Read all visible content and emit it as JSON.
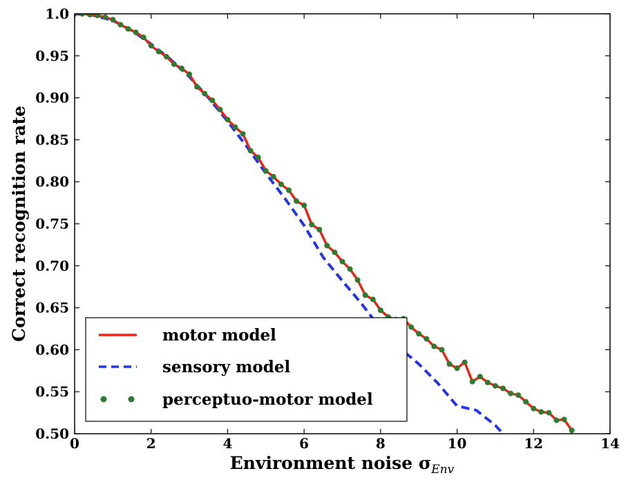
{
  "chart_data": {
    "type": "line",
    "title": "",
    "xlabel": "Environment noise σ",
    "xlabel_subscript": "Env",
    "ylabel": "Correct recognition rate",
    "xlim": [
      0,
      14
    ],
    "ylim": [
      0.5,
      1.0
    ],
    "xticks": [
      0,
      2,
      4,
      6,
      8,
      10,
      12,
      14
    ],
    "yticks": [
      0.5,
      0.55,
      0.6,
      0.65,
      0.7,
      0.75,
      0.8,
      0.85,
      0.9,
      0.95,
      1.0
    ],
    "xtick_labels": [
      "0",
      "2",
      "4",
      "6",
      "8",
      "10",
      "12",
      "14"
    ],
    "ytick_labels": [
      "0.50",
      "0.55",
      "0.60",
      "0.65",
      "0.70",
      "0.75",
      "0.80",
      "0.85",
      "0.90",
      "0.95",
      "1.0"
    ],
    "grid": false,
    "legend_position": "lower-left",
    "series": [
      {
        "name": "motor model",
        "style": "solid",
        "color": "#ee2211",
        "x": [
          0,
          0.2,
          0.4,
          0.6,
          0.8,
          1.0,
          1.2,
          1.4,
          1.6,
          1.8,
          2.0,
          2.2,
          2.4,
          2.6,
          2.8,
          3.0,
          3.2,
          3.4,
          3.6,
          3.8,
          4.0,
          4.2,
          4.4,
          4.6,
          4.8,
          5.0,
          5.2,
          5.4,
          5.6,
          5.8,
          6.0,
          6.2,
          6.4,
          6.6,
          6.8,
          7.0,
          7.2,
          7.4,
          7.6,
          7.8,
          8.0,
          8.2,
          8.4,
          8.6,
          8.8,
          9.0,
          9.2,
          9.4,
          9.6,
          9.8,
          10.0,
          10.2,
          10.4,
          10.6,
          10.8,
          11.0,
          11.2,
          11.4,
          11.6,
          11.8,
          12.0,
          12.2,
          12.4,
          12.6,
          12.8,
          13.0
        ],
        "y": [
          1.0,
          1.0,
          0.999,
          0.998,
          0.996,
          0.993,
          0.987,
          0.982,
          0.978,
          0.972,
          0.962,
          0.955,
          0.949,
          0.94,
          0.935,
          0.928,
          0.913,
          0.905,
          0.897,
          0.886,
          0.874,
          0.865,
          0.857,
          0.837,
          0.829,
          0.813,
          0.806,
          0.797,
          0.79,
          0.777,
          0.772,
          0.749,
          0.743,
          0.724,
          0.716,
          0.705,
          0.696,
          0.683,
          0.665,
          0.66,
          0.647,
          0.639,
          0.636,
          0.637,
          0.627,
          0.619,
          0.613,
          0.604,
          0.6,
          0.583,
          0.578,
          0.585,
          0.562,
          0.568,
          0.561,
          0.557,
          0.554,
          0.548,
          0.546,
          0.538,
          0.53,
          0.526,
          0.525,
          0.516,
          0.517,
          0.504
        ]
      },
      {
        "name": "sensory model",
        "style": "dashed",
        "color": "#2233ee",
        "x": [
          0,
          0.5,
          1.0,
          1.5,
          2.0,
          2.5,
          3.0,
          3.5,
          4.0,
          4.5,
          5.0,
          5.5,
          6.0,
          6.5,
          7.0,
          7.5,
          8.0,
          8.5,
          9.0,
          9.5,
          10.0,
          10.5,
          11.0,
          11.2
        ],
        "y": [
          1.0,
          0.998,
          0.992,
          0.98,
          0.964,
          0.946,
          0.925,
          0.9,
          0.872,
          0.842,
          0.81,
          0.78,
          0.748,
          0.71,
          0.682,
          0.655,
          0.625,
          0.602,
          0.583,
          0.56,
          0.533,
          0.528,
          0.51,
          0.5
        ]
      },
      {
        "name": "perceptuo-motor model",
        "style": "dots",
        "color": "#2e7a2e",
        "x": [
          0,
          0.2,
          0.4,
          0.6,
          0.8,
          1.0,
          1.2,
          1.4,
          1.6,
          1.8,
          2.0,
          2.2,
          2.4,
          2.6,
          2.8,
          3.0,
          3.2,
          3.4,
          3.6,
          3.8,
          4.0,
          4.2,
          4.4,
          4.6,
          4.8,
          5.0,
          5.2,
          5.4,
          5.6,
          5.8,
          6.0,
          6.2,
          6.4,
          6.6,
          6.8,
          7.0,
          7.2,
          7.4,
          7.6,
          7.8,
          8.0,
          8.2,
          8.4,
          8.6,
          8.8,
          9.0,
          9.2,
          9.4,
          9.6,
          9.8,
          10.0,
          10.2,
          10.4,
          10.6,
          10.8,
          11.0,
          11.2,
          11.4,
          11.6,
          11.8,
          12.0,
          12.2,
          12.4,
          12.6,
          12.8,
          13.0
        ],
        "y": [
          1.0,
          1.0,
          0.999,
          0.998,
          0.996,
          0.993,
          0.987,
          0.982,
          0.978,
          0.972,
          0.962,
          0.955,
          0.949,
          0.94,
          0.935,
          0.928,
          0.913,
          0.905,
          0.897,
          0.886,
          0.874,
          0.865,
          0.857,
          0.837,
          0.829,
          0.813,
          0.806,
          0.797,
          0.79,
          0.777,
          0.772,
          0.749,
          0.743,
          0.724,
          0.716,
          0.705,
          0.696,
          0.683,
          0.665,
          0.66,
          0.647,
          0.639,
          0.636,
          0.637,
          0.627,
          0.619,
          0.613,
          0.604,
          0.6,
          0.583,
          0.578,
          0.585,
          0.562,
          0.568,
          0.561,
          0.557,
          0.554,
          0.548,
          0.546,
          0.538,
          0.53,
          0.526,
          0.525,
          0.516,
          0.517,
          0.504
        ]
      }
    ]
  }
}
